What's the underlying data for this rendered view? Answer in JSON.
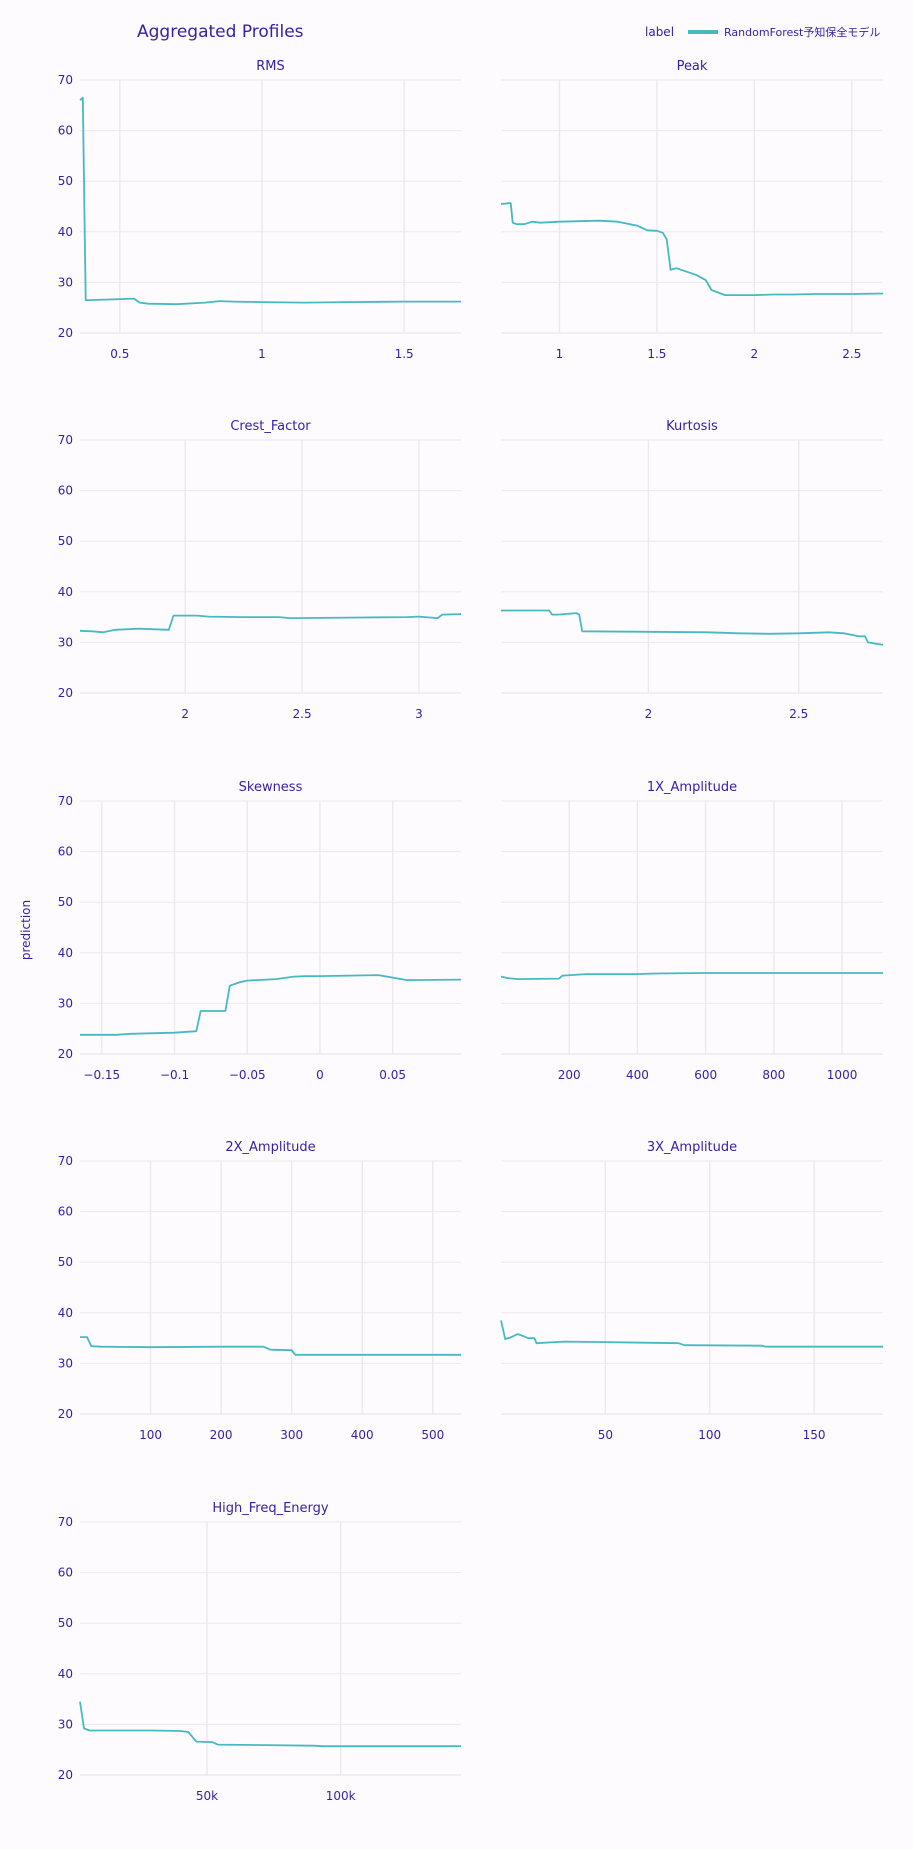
{
  "header": {
    "title": "Aggregated Profiles",
    "legend_title": "label",
    "legend_label": "RandomForest予知保全モデル",
    "ylabel": "prediction"
  },
  "colors": {
    "line": "#46bac2",
    "text": "#371ea3",
    "grid": "#ebe9ef",
    "background": "#fdfbfe"
  },
  "chart_data": [
    {
      "type": "line",
      "title": "RMS",
      "xlim": [
        0.36,
        1.7
      ],
      "ylim": [
        20,
        70
      ],
      "xticks": [
        {
          "v": 0.5,
          "l": "0.5"
        },
        {
          "v": 1,
          "l": "1"
        },
        {
          "v": 1.5,
          "l": "1.5"
        }
      ],
      "yticks": [
        20,
        30,
        40,
        50,
        60,
        70
      ],
      "x": [
        0.36,
        0.37,
        0.38,
        0.39,
        0.45,
        0.5,
        0.55,
        0.57,
        0.6,
        0.7,
        0.8,
        0.85,
        0.9,
        1.0,
        1.15,
        1.3,
        1.5,
        1.7
      ],
      "y": [
        66,
        66.5,
        26.5,
        26.5,
        26.6,
        26.7,
        26.8,
        26.0,
        25.8,
        25.7,
        26.0,
        26.3,
        26.2,
        26.1,
        26.0,
        26.1,
        26.2,
        26.2
      ]
    },
    {
      "type": "line",
      "title": "Peak",
      "xlim": [
        0.7,
        2.66
      ],
      "ylim": [
        20,
        70
      ],
      "xticks": [
        {
          "v": 1,
          "l": "1"
        },
        {
          "v": 1.5,
          "l": "1.5"
        },
        {
          "v": 2,
          "l": "2"
        },
        {
          "v": 2.5,
          "l": "2.5"
        }
      ],
      "yticks": [
        20,
        30,
        40,
        50,
        60,
        70
      ],
      "x": [
        0.7,
        0.75,
        0.76,
        0.78,
        0.82,
        0.86,
        0.9,
        1.0,
        1.2,
        1.3,
        1.4,
        1.45,
        1.5,
        1.53,
        1.55,
        1.57,
        1.6,
        1.7,
        1.75,
        1.78,
        1.8,
        1.85,
        1.9,
        2.0,
        2.1,
        2.2,
        2.3,
        2.5,
        2.66
      ],
      "y": [
        45.5,
        45.7,
        41.8,
        41.5,
        41.5,
        42.0,
        41.8,
        42.0,
        42.2,
        42.0,
        41.2,
        40.3,
        40.2,
        39.8,
        38.5,
        32.5,
        32.8,
        31.5,
        30.5,
        28.5,
        28.2,
        27.5,
        27.5,
        27.5,
        27.6,
        27.6,
        27.7,
        27.7,
        27.8
      ]
    },
    {
      "type": "line",
      "title": "Crest_Factor",
      "xlim": [
        1.55,
        3.18
      ],
      "ylim": [
        20,
        70
      ],
      "xticks": [
        {
          "v": 2,
          "l": "2"
        },
        {
          "v": 2.5,
          "l": "2.5"
        },
        {
          "v": 3,
          "l": "3"
        }
      ],
      "yticks": [
        20,
        30,
        40,
        50,
        60,
        70
      ],
      "x": [
        1.55,
        1.6,
        1.65,
        1.7,
        1.8,
        1.93,
        1.95,
        2.05,
        2.1,
        2.25,
        2.4,
        2.45,
        2.7,
        2.95,
        3.0,
        3.08,
        3.1,
        3.18
      ],
      "y": [
        32.3,
        32.2,
        32.0,
        32.5,
        32.7,
        32.5,
        35.3,
        35.3,
        35.1,
        35.0,
        35.0,
        34.8,
        34.9,
        35.0,
        35.1,
        34.8,
        35.5,
        35.6
      ]
    },
    {
      "type": "line",
      "title": "Kurtosis",
      "xlim": [
        1.51,
        2.78
      ],
      "ylim": [
        20,
        70
      ],
      "xticks": [
        {
          "v": 2,
          "l": "2"
        },
        {
          "v": 2.5,
          "l": "2.5"
        }
      ],
      "yticks": [
        20,
        30,
        40,
        50,
        60,
        70
      ],
      "x": [
        1.51,
        1.67,
        1.68,
        1.7,
        1.76,
        1.77,
        1.78,
        2.0,
        2.2,
        2.3,
        2.4,
        2.5,
        2.6,
        2.65,
        2.7,
        2.72,
        2.73,
        2.78
      ],
      "y": [
        36.3,
        36.3,
        35.5,
        35.5,
        35.8,
        35.5,
        32.2,
        32.1,
        32.0,
        31.8,
        31.7,
        31.8,
        32.0,
        31.8,
        31.2,
        31.2,
        30.0,
        29.5
      ]
    },
    {
      "type": "line",
      "title": "Skewness",
      "xlim": [
        -0.165,
        0.097
      ],
      "ylim": [
        20,
        70
      ],
      "xticks": [
        {
          "v": -0.15,
          "l": "−0.15"
        },
        {
          "v": -0.1,
          "l": "−0.1"
        },
        {
          "v": -0.05,
          "l": "−0.05"
        },
        {
          "v": 0,
          "l": "0"
        },
        {
          "v": 0.05,
          "l": "0.05"
        }
      ],
      "yticks": [
        20,
        30,
        40,
        50,
        60,
        70
      ],
      "x": [
        -0.165,
        -0.14,
        -0.13,
        -0.1,
        -0.085,
        -0.082,
        -0.07,
        -0.065,
        -0.062,
        -0.055,
        -0.05,
        -0.03,
        -0.018,
        -0.01,
        0,
        0.02,
        0.04,
        0.05,
        0.06,
        0.097
      ],
      "y": [
        23.8,
        23.8,
        24.0,
        24.2,
        24.5,
        28.5,
        28.5,
        28.5,
        33.5,
        34.2,
        34.5,
        34.8,
        35.3,
        35.4,
        35.4,
        35.5,
        35.6,
        35.1,
        34.6,
        34.7
      ]
    },
    {
      "type": "line",
      "title": "1X_Amplitude",
      "xlim": [
        0,
        1120
      ],
      "ylim": [
        20,
        70
      ],
      "xticks": [
        {
          "v": 200,
          "l": "200"
        },
        {
          "v": 400,
          "l": "400"
        },
        {
          "v": 600,
          "l": "600"
        },
        {
          "v": 800,
          "l": "800"
        },
        {
          "v": 1000,
          "l": "1000"
        }
      ],
      "yticks": [
        20,
        30,
        40,
        50,
        60,
        70
      ],
      "x": [
        0,
        20,
        50,
        170,
        180,
        250,
        400,
        450,
        600,
        1120
      ],
      "y": [
        35.3,
        35.0,
        34.8,
        34.9,
        35.5,
        35.8,
        35.8,
        35.9,
        36.0,
        36.0
      ]
    },
    {
      "type": "line",
      "title": "2X_Amplitude",
      "xlim": [
        0,
        540
      ],
      "ylim": [
        20,
        70
      ],
      "xticks": [
        {
          "v": 100,
          "l": "100"
        },
        {
          "v": 200,
          "l": "200"
        },
        {
          "v": 300,
          "l": "300"
        },
        {
          "v": 400,
          "l": "400"
        },
        {
          "v": 500,
          "l": "500"
        }
      ],
      "yticks": [
        20,
        30,
        40,
        50,
        60,
        70
      ],
      "x": [
        0,
        10,
        16,
        30,
        100,
        200,
        260,
        270,
        300,
        305,
        540
      ],
      "y": [
        35.2,
        35.2,
        33.4,
        33.3,
        33.2,
        33.3,
        33.3,
        32.7,
        32.6,
        31.7,
        31.7
      ]
    },
    {
      "type": "line",
      "title": "3X_Amplitude",
      "xlim": [
        0,
        183
      ],
      "ylim": [
        20,
        70
      ],
      "xticks": [
        {
          "v": 50,
          "l": "50"
        },
        {
          "v": 100,
          "l": "100"
        },
        {
          "v": 150,
          "l": "150"
        }
      ],
      "yticks": [
        20,
        30,
        40,
        50,
        60,
        70
      ],
      "x": [
        0,
        2,
        5,
        8,
        10,
        13,
        16,
        17,
        30,
        50,
        85,
        88,
        125,
        127,
        183
      ],
      "y": [
        38.5,
        34.8,
        35.2,
        35.8,
        35.5,
        35.0,
        35.0,
        34.0,
        34.3,
        34.2,
        34.0,
        33.6,
        33.5,
        33.3,
        33.3
      ]
    },
    {
      "type": "line",
      "title": "High_Freq_Energy",
      "xlim": [
        2500,
        145000
      ],
      "ylim": [
        20,
        70
      ],
      "xticks": [
        {
          "v": 50000,
          "l": "50k"
        },
        {
          "v": 100000,
          "l": "100k"
        }
      ],
      "yticks": [
        20,
        30,
        40,
        50,
        60,
        70
      ],
      "x": [
        2500,
        4000,
        6000,
        10000,
        30000,
        40000,
        43000,
        46000,
        52000,
        54000,
        90000,
        93000,
        145000
      ],
      "y": [
        34.5,
        29.2,
        28.8,
        28.8,
        28.8,
        28.7,
        28.5,
        26.6,
        26.5,
        26.0,
        25.8,
        25.7,
        25.7
      ]
    }
  ]
}
